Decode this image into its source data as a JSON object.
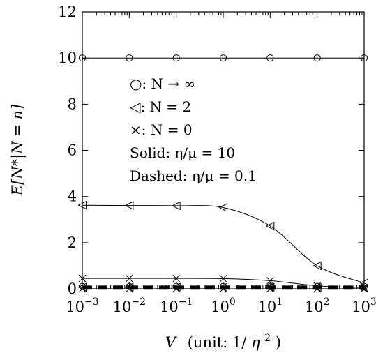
{
  "chart_data": {
    "type": "line",
    "x_scale": "log",
    "x": [
      0.001,
      0.01,
      0.1,
      1,
      10,
      100,
      1000
    ],
    "x_tick_labels": [
      {
        "base": "10",
        "exp": "−3"
      },
      {
        "base": "10",
        "exp": "−2"
      },
      {
        "base": "10",
        "exp": "−1"
      },
      {
        "base": "10",
        "exp": "0"
      },
      {
        "base": "10",
        "exp": "1"
      },
      {
        "base": "10",
        "exp": "2"
      },
      {
        "base": "10",
        "exp": "3"
      }
    ],
    "xlim": [
      0.001,
      1000
    ],
    "ylim": [
      0,
      12
    ],
    "y_ticks": [
      0,
      2,
      4,
      6,
      8,
      10,
      12
    ],
    "y_tick_labels": [
      "0",
      "2",
      "4",
      "6",
      "8",
      "10",
      "12"
    ],
    "xlabel": {
      "var": "V",
      "unit_text": "(unit: 1/",
      "unit_var": "η",
      "unit_exp": "2",
      "unit_close": ")"
    },
    "ylabel": "E[N*|N = n]",
    "grid": false,
    "legend_placement": "upper-center",
    "legend": [
      {
        "marker": "○",
        "text": ": N → ∞"
      },
      {
        "marker": "◁",
        "text": ": N = 2"
      },
      {
        "marker": "×",
        "text": ": N = 0"
      },
      {
        "marker": "",
        "text": "Solid: η/μ = 10"
      },
      {
        "marker": "",
        "text": "Dashed: η/μ = 0.1"
      }
    ],
    "series": [
      {
        "marker": "circle",
        "style": "solid",
        "values": [
          10,
          10,
          10,
          10,
          10,
          10,
          10
        ]
      },
      {
        "marker": "triangle-left",
        "style": "solid",
        "values": [
          3.62,
          3.61,
          3.6,
          3.52,
          2.72,
          1.0,
          0.25
        ]
      },
      {
        "marker": "x",
        "style": "solid",
        "values": [
          0.45,
          0.45,
          0.45,
          0.44,
          0.35,
          0.13,
          0.05
        ]
      },
      {
        "marker": "circle",
        "style": "dashed",
        "values": [
          0.1,
          0.1,
          0.1,
          0.1,
          0.1,
          0.1,
          0.1
        ]
      },
      {
        "marker": "triangle-left",
        "style": "dashed",
        "values": [
          0.07,
          0.07,
          0.07,
          0.07,
          0.07,
          0.06,
          0.03
        ]
      },
      {
        "marker": "x",
        "style": "dashed",
        "values": [
          0.0,
          0.0,
          0.0,
          0.0,
          0.0,
          0.0,
          0.0
        ]
      }
    ]
  }
}
